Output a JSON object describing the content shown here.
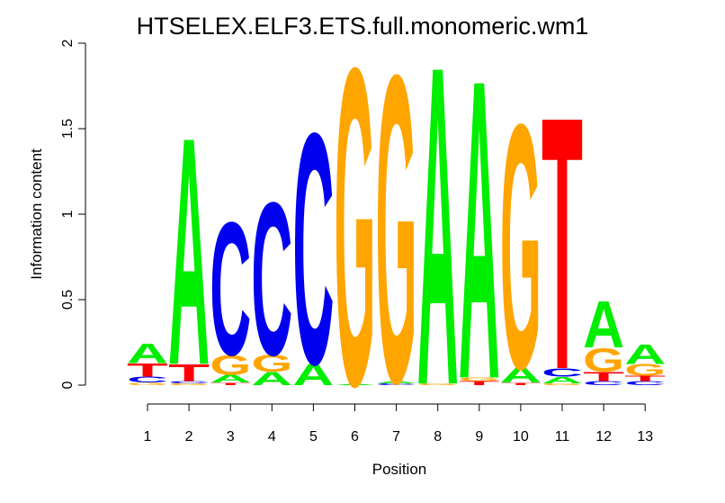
{
  "chart_data": {
    "type": "sequence-logo",
    "title": "HTSELEX.ELF3.ETS.full.monomeric.wm1",
    "xlabel": "Position",
    "ylabel": "Information content",
    "ylim": [
      0,
      2
    ],
    "yticks": [
      0,
      0.5,
      1,
      1.5,
      2
    ],
    "ytick_labels": [
      "0",
      "0.5",
      "1",
      "1.5",
      "2"
    ],
    "categories": [
      "1",
      "2",
      "3",
      "4",
      "5",
      "6",
      "7",
      "8",
      "9",
      "10",
      "11",
      "12",
      "13"
    ],
    "colors": {
      "A": "#00ee00",
      "C": "#0000ee",
      "G": "#ffa500",
      "T": "#ff0000"
    },
    "positions": [
      {
        "position": "1",
        "stack": [
          [
            "G",
            0.015
          ],
          [
            "C",
            0.035
          ],
          [
            "T",
            0.08
          ],
          [
            "A",
            0.12
          ]
        ]
      },
      {
        "position": "2",
        "stack": [
          [
            "G",
            0.01
          ],
          [
            "C",
            0.015
          ],
          [
            "T",
            0.1
          ],
          [
            "A",
            1.37
          ]
        ]
      },
      {
        "position": "3",
        "stack": [
          [
            "T",
            0.015
          ],
          [
            "A",
            0.045
          ],
          [
            "G",
            0.12
          ],
          [
            "C",
            0.8
          ]
        ]
      },
      {
        "position": "4",
        "stack": [
          [
            "A",
            0.08
          ],
          [
            "G",
            0.1
          ],
          [
            "C",
            0.92
          ]
        ]
      },
      {
        "position": "5",
        "stack": [
          [
            "A",
            0.13
          ],
          [
            "C",
            1.39
          ]
        ]
      },
      {
        "position": "6",
        "stack": [
          [
            "A",
            0.008
          ],
          [
            "G",
            1.91
          ]
        ]
      },
      {
        "position": "7",
        "stack": [
          [
            "C",
            0.01
          ],
          [
            "A",
            0.015
          ],
          [
            "G",
            1.85
          ]
        ]
      },
      {
        "position": "8",
        "stack": [
          [
            "G",
            0.01
          ],
          [
            "A",
            1.92
          ]
        ]
      },
      {
        "position": "9",
        "stack": [
          [
            "T",
            0.025
          ],
          [
            "G",
            0.02
          ],
          [
            "A",
            1.8
          ]
        ]
      },
      {
        "position": "10",
        "stack": [
          [
            "T",
            0.015
          ],
          [
            "A",
            0.09
          ],
          [
            "G",
            1.47
          ]
        ]
      },
      {
        "position": "11",
        "stack": [
          [
            "G",
            0.01
          ],
          [
            "A",
            0.04
          ],
          [
            "C",
            0.05
          ],
          [
            "T",
            1.52
          ]
        ]
      },
      {
        "position": "12",
        "stack": [
          [
            "C",
            0.025
          ],
          [
            "T",
            0.055
          ],
          [
            "G",
            0.14
          ],
          [
            "A",
            0.28
          ]
        ]
      },
      {
        "position": "13",
        "stack": [
          [
            "C",
            0.025
          ],
          [
            "T",
            0.03
          ],
          [
            "G",
            0.07
          ],
          [
            "A",
            0.12
          ]
        ]
      }
    ]
  }
}
